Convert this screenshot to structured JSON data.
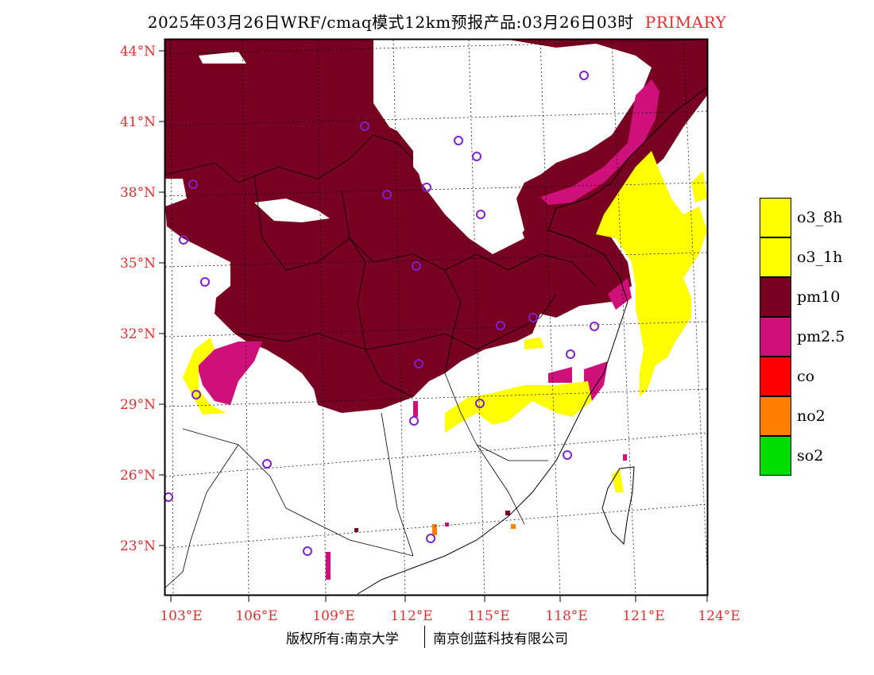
{
  "title": {
    "text": "2025年03月26日WRF/cmaq模式12km预报产品:03月26日03时",
    "tag": "PRIMARY"
  },
  "axes": {
    "lat_labels": [
      "44°N",
      "41°N",
      "38°N",
      "35°N",
      "32°N",
      "29°N",
      "26°N",
      "23°N"
    ],
    "lon_labels": [
      "103°E",
      "106°E",
      "109°E",
      "112°E",
      "115°E",
      "118°E",
      "121°E",
      "124°E"
    ]
  },
  "legend": {
    "items": [
      {
        "label": "o3_8h",
        "color": "#ffff00"
      },
      {
        "label": "o3_1h",
        "color": "#ffff00"
      },
      {
        "label": "pm10",
        "color": "#780020"
      },
      {
        "label": "pm2.5",
        "color": "#d0107a"
      },
      {
        "label": "co",
        "color": "#ff0000"
      },
      {
        "label": "no2",
        "color": "#ff8000"
      },
      {
        "label": "so2",
        "color": "#00dd00"
      }
    ]
  },
  "footer": {
    "left": "版权所有:南京大学",
    "right": "南京创蓝科技有限公司"
  }
}
